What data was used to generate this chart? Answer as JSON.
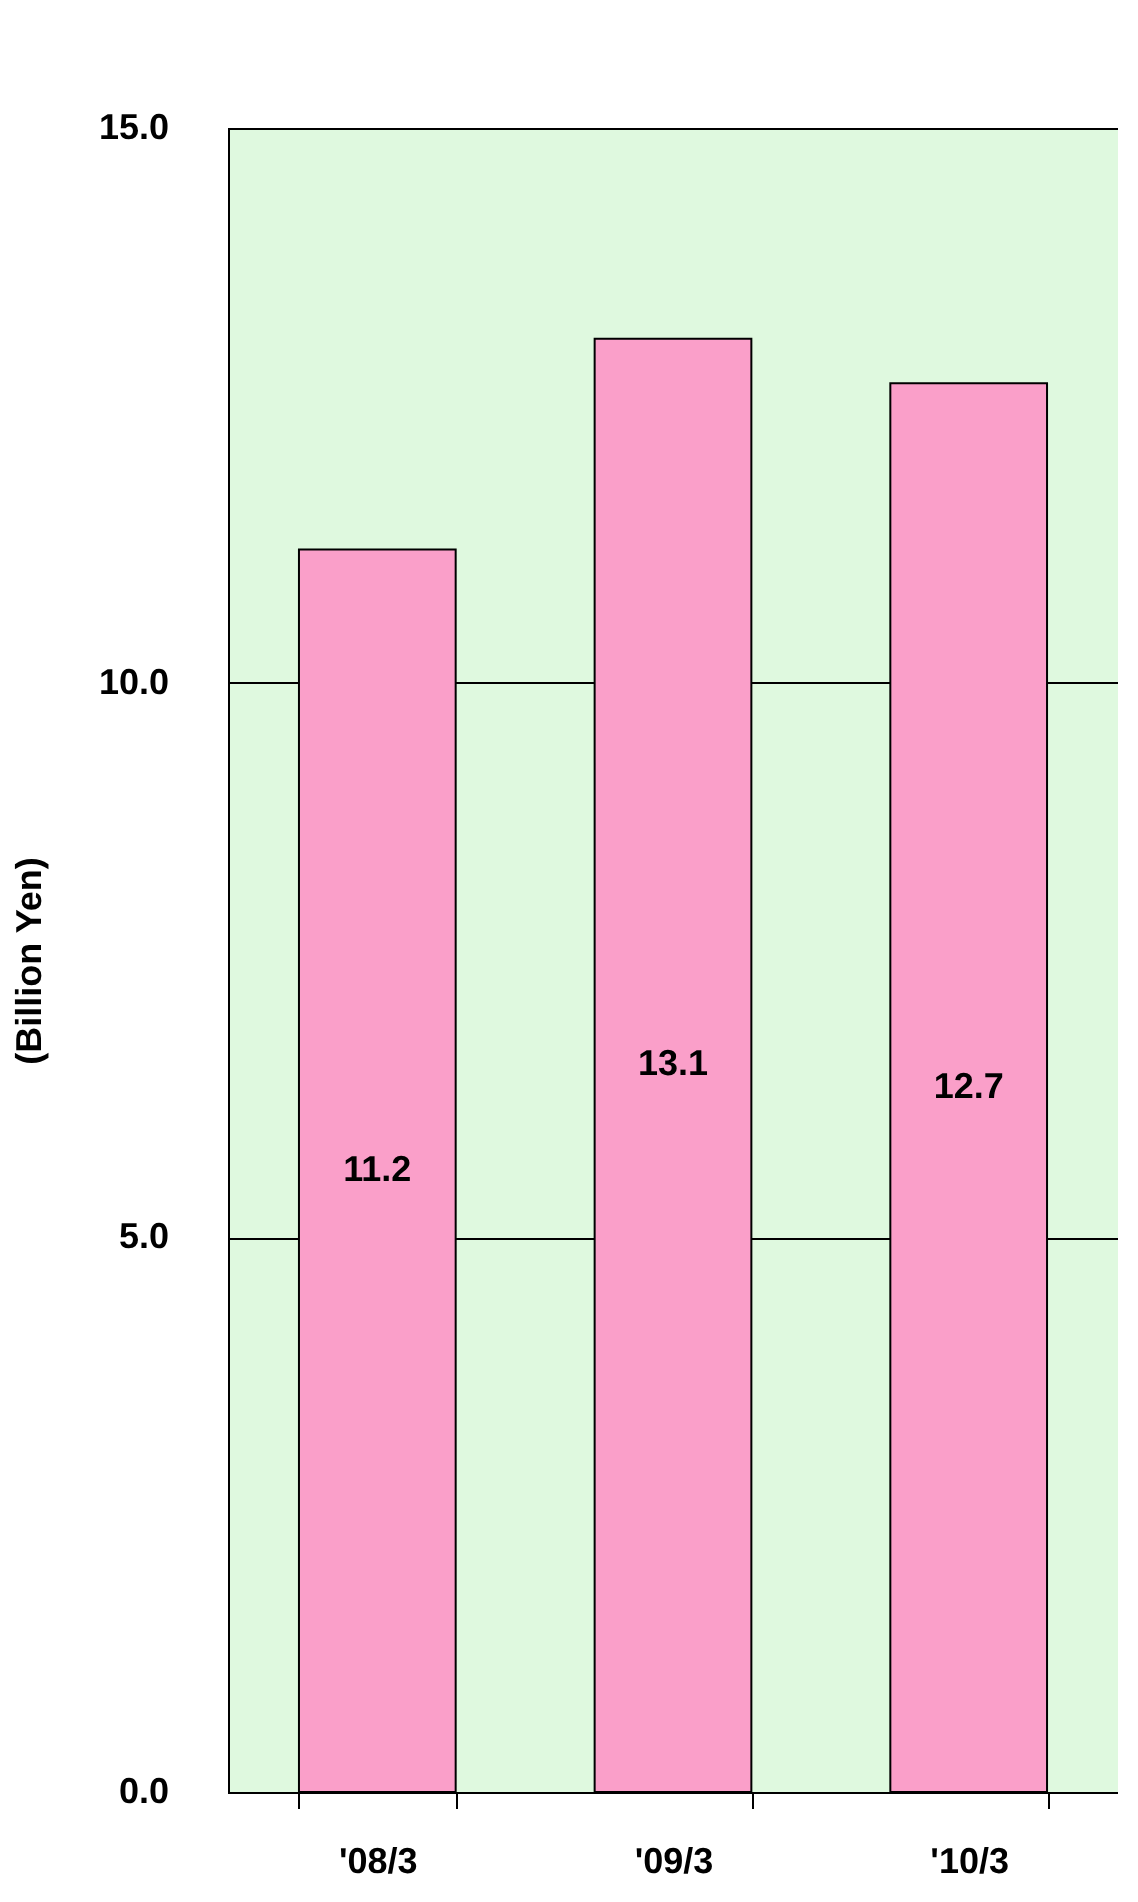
{
  "chart_data": {
    "type": "bar",
    "ylabel": "(Billion Yen)",
    "categories": [
      "'08/3",
      "'09/3",
      "'10/3"
    ],
    "values": [
      11.2,
      13.1,
      12.7
    ],
    "color": "#fa9fc9",
    "data_labels": true,
    "ylim": [
      0,
      15
    ],
    "yticks": [
      {
        "value": 0,
        "label": "0.0"
      },
      {
        "value": 5,
        "label": "5.0"
      },
      {
        "value": 10,
        "label": "10.0"
      },
      {
        "value": 15,
        "label": "15.0"
      }
    ],
    "grid": "y"
  }
}
